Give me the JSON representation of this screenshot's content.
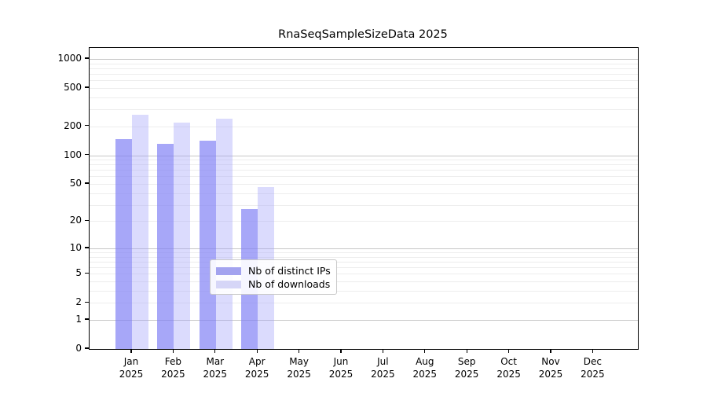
{
  "chart_data": {
    "type": "bar",
    "title": "RnaSeqSampleSizeData 2025",
    "categories": [
      "Jan 2025",
      "Feb 2025",
      "Mar 2025",
      "Apr 2025",
      "May 2025",
      "Jun 2025",
      "Jul 2025",
      "Aug 2025",
      "Sep 2025",
      "Oct 2025",
      "Nov 2025",
      "Dec 2025"
    ],
    "series": [
      {
        "name": "Nb of distinct IPs",
        "legend_color": "#a3a3ef",
        "fill": "rgba(130,130,245,0.70)",
        "values": [
          148,
          132,
          142,
          27,
          0,
          0,
          0,
          0,
          0,
          0,
          0,
          0
        ]
      },
      {
        "name": "Nb of downloads",
        "legend_color": "#d6d6f7",
        "fill": "rgba(160,160,250,0.38)",
        "values": [
          265,
          218,
          240,
          46,
          0,
          0,
          0,
          0,
          0,
          0,
          0,
          0
        ]
      }
    ],
    "y_ticks": [
      0,
      1,
      2,
      5,
      10,
      20,
      50,
      100,
      200,
      500,
      1000
    ],
    "y_scale": "log1p",
    "ylim": [
      0,
      1300
    ],
    "xlabel": "",
    "ylabel": "",
    "grid": true,
    "legend_position": "inside-lower-center",
    "colors": {
      "major_grid": "#c7c7c7",
      "minor_grid": "#ededed",
      "axis": "#000000",
      "background": "#ffffff",
      "text": "#000000"
    }
  }
}
